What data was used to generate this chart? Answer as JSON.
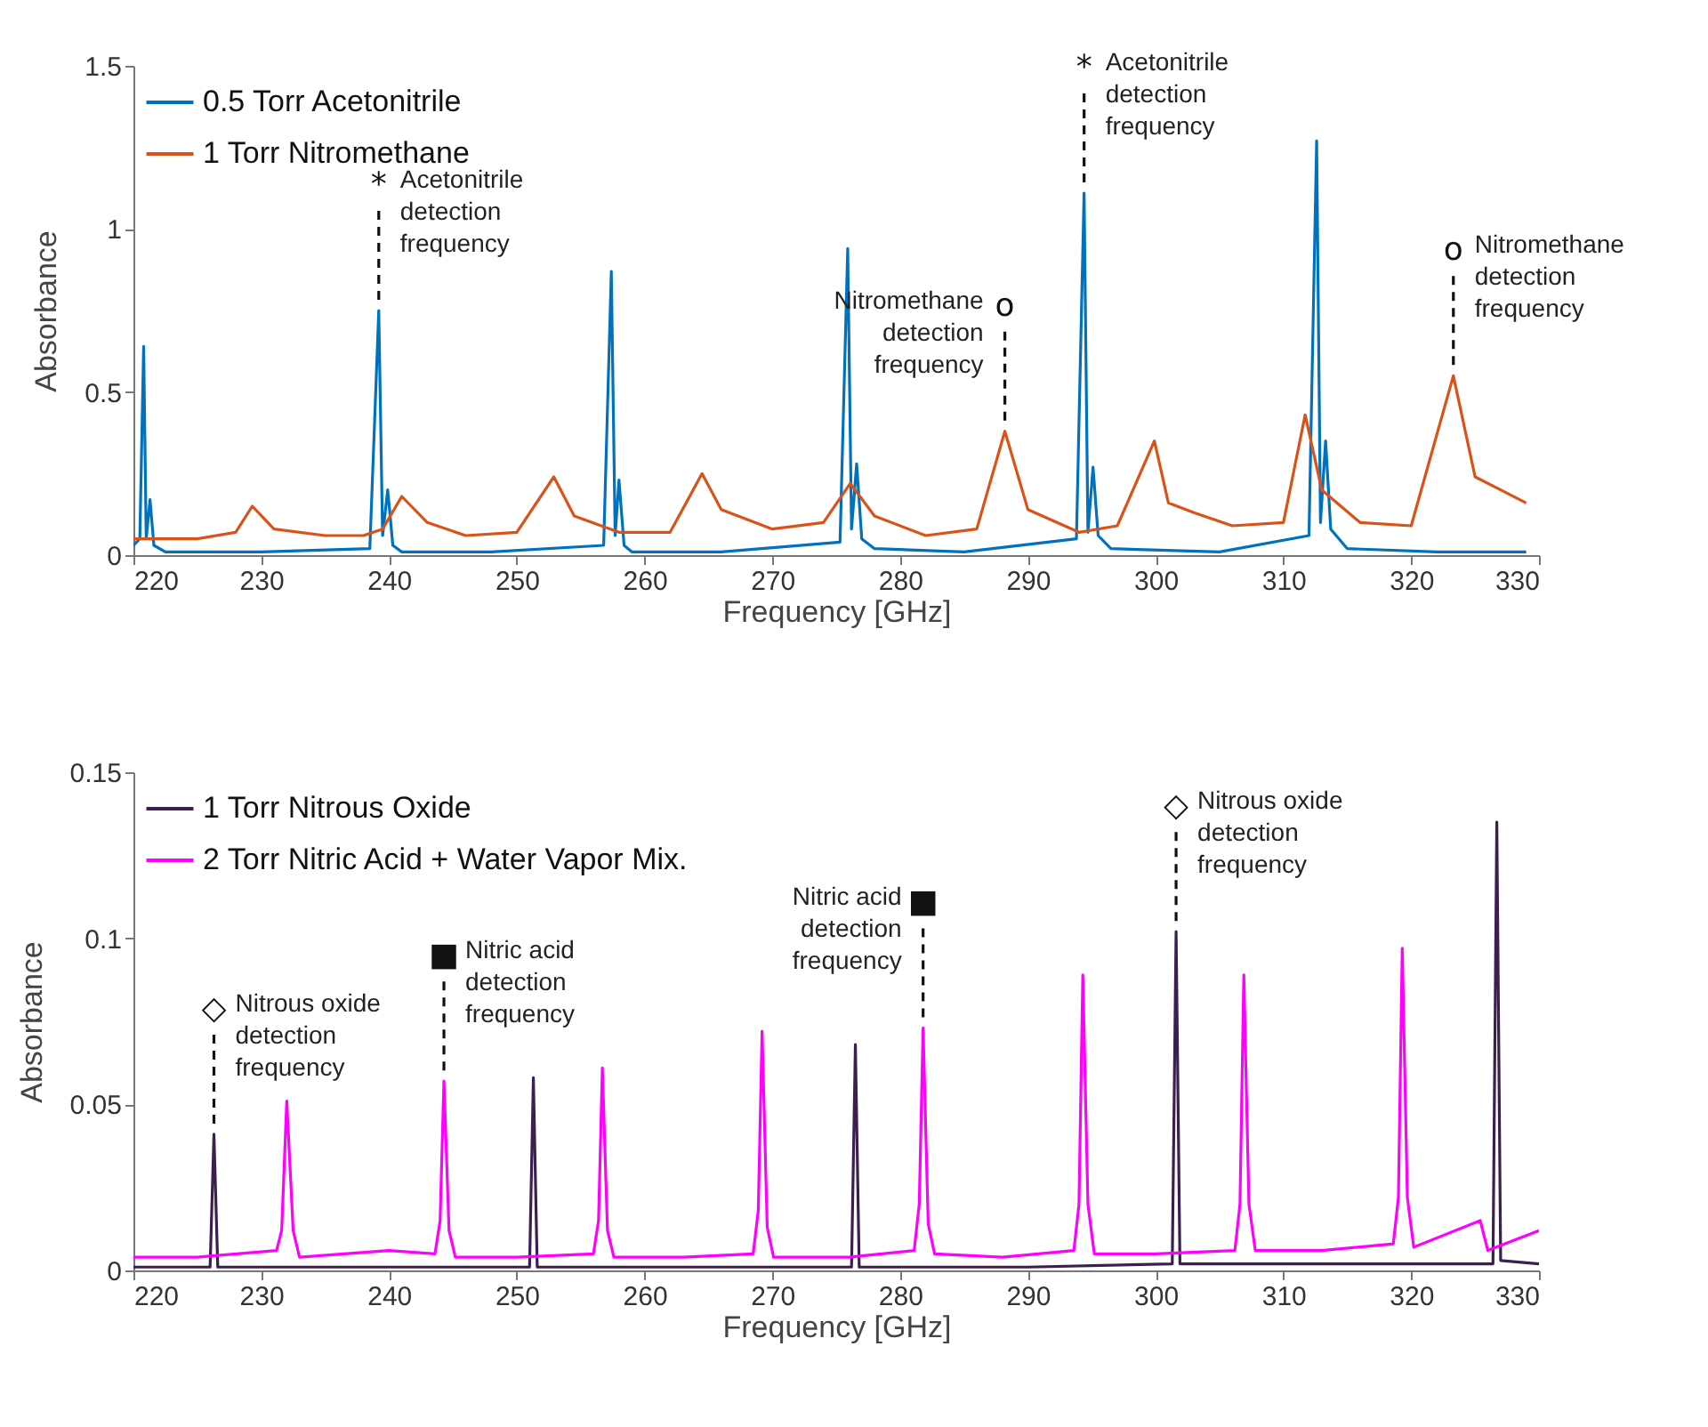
{
  "chart_data": [
    {
      "type": "line",
      "xlabel": "Frequency [GHz]",
      "ylabel": "Absorbance",
      "xlim": [
        220,
        330
      ],
      "xticks": [
        220,
        230,
        240,
        250,
        260,
        270,
        280,
        290,
        300,
        310,
        320,
        330
      ],
      "ylim": [
        0,
        1.5
      ],
      "yticks": [
        0,
        0.5,
        1,
        1.5
      ],
      "grid": false,
      "legend": "top left",
      "series": [
        {
          "name": "0.5 Torr Acetonitrile",
          "color": "#0072bd",
          "x": [
            220,
            220.5,
            220.8,
            221.0,
            221.3,
            221.6,
            222.5,
            230,
            238.5,
            239.2,
            239.5,
            239.9,
            240.3,
            241,
            248,
            256.8,
            257.4,
            257.7,
            258.0,
            258.4,
            259,
            266,
            275.3,
            275.9,
            276.2,
            276.6,
            277,
            278,
            285,
            293.8,
            294.4,
            294.7,
            295.1,
            295.5,
            296.5,
            305,
            312,
            312.6,
            312.9,
            313.3,
            313.7,
            315,
            322,
            329
          ],
          "values": [
            0.03,
            0.05,
            0.64,
            0.05,
            0.17,
            0.03,
            0.01,
            0.01,
            0.02,
            0.75,
            0.06,
            0.2,
            0.03,
            0.01,
            0.01,
            0.03,
            0.87,
            0.06,
            0.23,
            0.03,
            0.01,
            0.01,
            0.04,
            0.94,
            0.08,
            0.28,
            0.05,
            0.02,
            0.01,
            0.05,
            1.11,
            0.07,
            0.27,
            0.06,
            0.02,
            0.01,
            0.06,
            1.27,
            0.1,
            0.35,
            0.08,
            0.02,
            0.01,
            0.01
          ]
        },
        {
          "name": "1 Torr Nitromethane",
          "color": "#d95319",
          "x": [
            220,
            225,
            228,
            229.3,
            231,
            235,
            238,
            239.5,
            241,
            243,
            246,
            250,
            252.9,
            254.5,
            258,
            262,
            264.5,
            266,
            270,
            274,
            276.1,
            278,
            282,
            286,
            288.2,
            290,
            294,
            297,
            299.9,
            301,
            303,
            306,
            310,
            311.7,
            313,
            316,
            320,
            323.3,
            325,
            327,
            329
          ],
          "values": [
            0.05,
            0.05,
            0.07,
            0.15,
            0.08,
            0.06,
            0.06,
            0.08,
            0.18,
            0.1,
            0.06,
            0.07,
            0.24,
            0.12,
            0.07,
            0.07,
            0.25,
            0.14,
            0.08,
            0.1,
            0.22,
            0.12,
            0.06,
            0.08,
            0.38,
            0.14,
            0.07,
            0.09,
            0.35,
            0.16,
            0.13,
            0.09,
            0.1,
            0.43,
            0.2,
            0.1,
            0.09,
            0.55,
            0.24,
            0.2,
            0.16
          ]
        }
      ],
      "annotations": [
        {
          "text": "*",
          "x": 239.2,
          "y": 0.75
        },
        {
          "text": "Acetonitrile\ndetection\nfrequency",
          "x": 239.2,
          "y": 0.75
        },
        {
          "text": "o",
          "x": 288.2,
          "y": 0.38
        },
        {
          "text": "Nitromethane\ndetection\nfrequency",
          "x": 288.2,
          "y": 0.38
        },
        {
          "text": "*",
          "x": 294.4,
          "y": 1.11
        },
        {
          "text": "Acetonitrile\ndetection\nfrequency",
          "x": 294.4,
          "y": 1.11
        },
        {
          "text": "o",
          "x": 323.3,
          "y": 0.55
        },
        {
          "text": "Nitromethane\ndetection\nfrequency",
          "x": 323.3,
          "y": 0.55
        }
      ]
    },
    {
      "type": "line",
      "xlabel": "Frequency [GHz]",
      "ylabel": "Absorbance",
      "xlim": [
        220,
        330
      ],
      "xticks": [
        220,
        230,
        240,
        250,
        260,
        270,
        280,
        290,
        300,
        310,
        320,
        330
      ],
      "ylim": [
        0,
        0.15
      ],
      "yticks": [
        0,
        0.05,
        0.1,
        0.15
      ],
      "grid": false,
      "legend": "top left",
      "series": [
        {
          "name": "1 Torr Nitrous Oxide",
          "color": "#3d1f4f",
          "x": [
            220,
            226.0,
            226.3,
            226.6,
            240,
            251.0,
            251.3,
            251.6,
            265,
            276.2,
            276.5,
            276.8,
            290,
            301.3,
            301.6,
            301.9,
            315,
            326.4,
            326.7,
            327,
            330
          ],
          "values": [
            0.001,
            0.001,
            0.041,
            0.001,
            0.001,
            0.001,
            0.058,
            0.001,
            0.001,
            0.001,
            0.068,
            0.001,
            0.001,
            0.002,
            0.102,
            0.002,
            0.002,
            0.002,
            0.135,
            0.003,
            0.002
          ]
        },
        {
          "name": "2 Torr Nitric Acid + Water Vapor Mix.",
          "color": "#ff00ff",
          "x": [
            220,
            225,
            231.2,
            231.6,
            232,
            232.5,
            233,
            240,
            243.6,
            244.0,
            244.3,
            244.7,
            245.2,
            250,
            256,
            256.4,
            256.7,
            257.1,
            257.6,
            263,
            268.5,
            268.9,
            269.2,
            269.6,
            270.1,
            276,
            281.1,
            281.5,
            281.8,
            282.2,
            282.7,
            288,
            293.6,
            294.0,
            294.3,
            294.7,
            295.2,
            300,
            306.2,
            306.6,
            306.9,
            307.3,
            307.8,
            313,
            318.6,
            319.0,
            319.3,
            319.7,
            320.2,
            325.4,
            326,
            330
          ],
          "values": [
            0.004,
            0.004,
            0.006,
            0.012,
            0.051,
            0.012,
            0.004,
            0.006,
            0.005,
            0.015,
            0.057,
            0.012,
            0.004,
            0.004,
            0.005,
            0.015,
            0.061,
            0.012,
            0.004,
            0.004,
            0.005,
            0.018,
            0.072,
            0.013,
            0.004,
            0.004,
            0.006,
            0.02,
            0.073,
            0.014,
            0.005,
            0.004,
            0.006,
            0.02,
            0.089,
            0.02,
            0.005,
            0.005,
            0.006,
            0.02,
            0.089,
            0.02,
            0.006,
            0.006,
            0.008,
            0.022,
            0.097,
            0.022,
            0.007,
            0.015,
            0.006,
            0.012
          ]
        }
      ],
      "annotations": [
        {
          "text": "◇",
          "x": 226.3,
          "y": 0.041
        },
        {
          "text": "Nitrous oxide\ndetection\nfrequency",
          "x": 226.3,
          "y": 0.041
        },
        {
          "text": "■",
          "x": 244.3,
          "y": 0.057
        },
        {
          "text": "Nitric acid\ndetection\nfrequency",
          "x": 244.3,
          "y": 0.057
        },
        {
          "text": "■",
          "x": 281.8,
          "y": 0.073
        },
        {
          "text": "Nitric acid\ndetection\nfrequency",
          "x": 281.8,
          "y": 0.073
        },
        {
          "text": "◇",
          "x": 301.6,
          "y": 0.102
        },
        {
          "text": "Nitrous oxide\ndetection\nfrequency",
          "x": 301.6,
          "y": 0.102
        }
      ]
    }
  ]
}
